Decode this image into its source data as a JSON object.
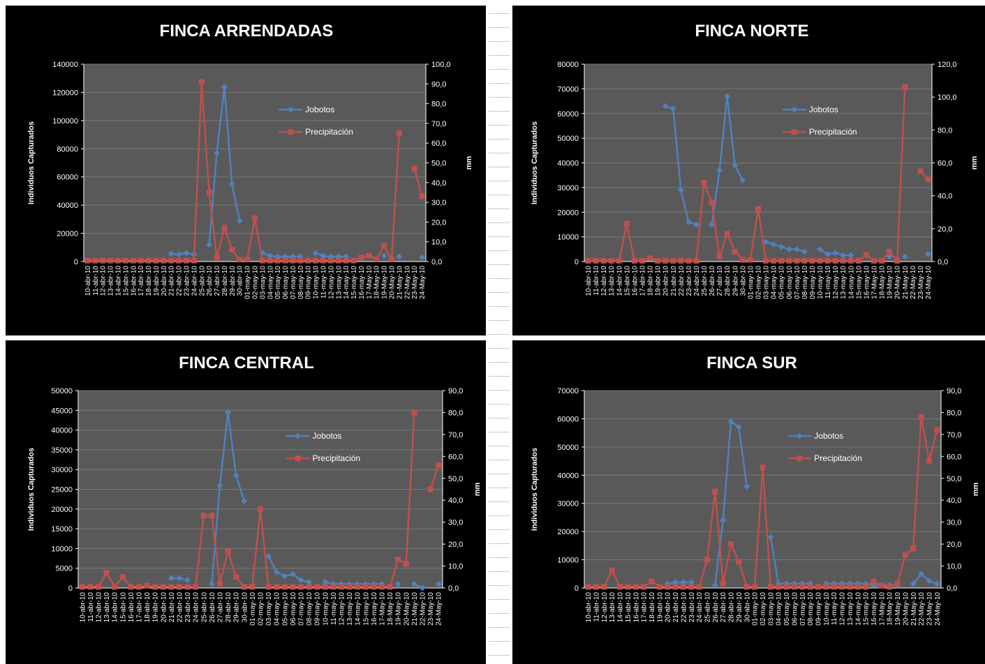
{
  "chart_data": [
    {
      "type": "line",
      "title": "FINCA ARRENDADAS",
      "ylabel": "Individuos Capturados",
      "y2label": "mm",
      "ylim": [
        0,
        140000
      ],
      "yticks": [
        "0",
        "20000",
        "40000",
        "60000",
        "80000",
        "100000",
        "120000",
        "140000"
      ],
      "y2lim": [
        0,
        100
      ],
      "y2ticks": [
        "0,0",
        "10,0",
        "20,0",
        "30,0",
        "40,0",
        "50,0",
        "60,0",
        "70,0",
        "80,0",
        "90,0",
        "100,0"
      ],
      "x": [
        "10-abr-10",
        "11-abr-10",
        "12-abr-10",
        "13-abr-10",
        "14-abr-10",
        "15-abr-10",
        "16-abr-10",
        "17-abr-10",
        "18-abr-10",
        "19-abr-10",
        "20-abr-10",
        "21-abr-10",
        "22-abr-10",
        "23-abr-10",
        "24-abr-10",
        "25-abr-10",
        "26-abr-10",
        "27-abr-10",
        "28-abr-10",
        "29-abr-10",
        "30-abr-10",
        "01-may-10",
        "02-may-10",
        "03-may-10",
        "04-may-10",
        "05-may-10",
        "06-may-10",
        "07-may-10",
        "08-may-10",
        "09-may-10",
        "10-may-10",
        "11-may-10",
        "12-may-10",
        "13-may-10",
        "14-may-10",
        "15-may-10",
        "16-may-10",
        "17-May-10",
        "18-May-10",
        "19-May-10",
        "20-May-10",
        "21-May-10",
        "22-May-10",
        "23-May-10",
        "24-May-10"
      ],
      "legend_position": "upper-center",
      "series": [
        {
          "name": "Jobotos",
          "color": "#4f81bd",
          "axis": "left",
          "values": [
            null,
            null,
            null,
            null,
            null,
            null,
            null,
            null,
            null,
            null,
            null,
            5500,
            5000,
            6000,
            5000,
            null,
            12000,
            77000,
            124000,
            55000,
            29000,
            null,
            null,
            6000,
            4000,
            3500,
            3500,
            3500,
            3500,
            null,
            6000,
            4000,
            3500,
            3500,
            3500,
            null,
            null,
            null,
            null,
            4000,
            null,
            3500,
            null,
            null,
            3000
          ]
        },
        {
          "name": "Precipitación",
          "color": "#c0504d",
          "axis": "right",
          "values": [
            0.5,
            0.5,
            0.5,
            0.5,
            0.5,
            0.5,
            0.5,
            0.5,
            0.5,
            0.5,
            0.5,
            0.5,
            0.5,
            0.5,
            0.5,
            91,
            35,
            2,
            17,
            6,
            1,
            1,
            22,
            0.5,
            0.5,
            0.5,
            0.5,
            0.5,
            0.5,
            0.5,
            0.5,
            0.5,
            0.5,
            0.5,
            0.5,
            0.5,
            2,
            3,
            1,
            8,
            1,
            65,
            null,
            47,
            33
          ]
        }
      ]
    },
    {
      "type": "line",
      "title": "FINCA NORTE",
      "ylabel": "Individuos Capturados",
      "y2label": "mm",
      "ylim": [
        0,
        80000
      ],
      "yticks": [
        "0",
        "10000",
        "20000",
        "30000",
        "40000",
        "50000",
        "60000",
        "70000",
        "80000"
      ],
      "y2lim": [
        0,
        120
      ],
      "y2ticks": [
        "0,0",
        "20,0",
        "40,0",
        "60,0",
        "80,0",
        "100,0",
        "120,0"
      ],
      "x": [
        "10-abr-10",
        "11-abr-10",
        "12-abr-10",
        "13-abr-10",
        "14-abr-10",
        "15-abr-10",
        "16-abr-10",
        "17-abr-10",
        "18-abr-10",
        "19-abr-10",
        "20-abr-10",
        "21-abr-10",
        "22-abr-10",
        "23-abr-10",
        "24-abr-10",
        "25-abr-10",
        "26-abr-10",
        "27-abr-10",
        "28-abr-10",
        "29-abr-10",
        "30-abr-10",
        "01-may-10",
        "02-may-10",
        "03-may-10",
        "04-may-10",
        "05-may-10",
        "06-may-10",
        "07-may-10",
        "08-may-10",
        "09-may-10",
        "10-may-10",
        "11-may-10",
        "12-may-10",
        "13-may-10",
        "14-may-10",
        "15-may-10",
        "16-may-10",
        "17-May-10",
        "18-May-10",
        "19-May-10",
        "20-May-10",
        "21-May-10",
        "22-May-10",
        "23-May-10",
        "24-May-10"
      ],
      "legend_position": "upper-center",
      "series": [
        {
          "name": "Jobotos",
          "color": "#4f81bd",
          "axis": "left",
          "values": [
            null,
            null,
            null,
            null,
            null,
            null,
            null,
            null,
            null,
            null,
            63000,
            62000,
            29000,
            16000,
            15000,
            null,
            15000,
            37000,
            67000,
            39000,
            33000,
            null,
            null,
            8000,
            7000,
            6000,
            5000,
            5000,
            4000,
            null,
            5000,
            3000,
            3500,
            2500,
            2500,
            null,
            null,
            null,
            null,
            2000,
            null,
            2000,
            null,
            null,
            3000
          ]
        },
        {
          "name": "Precipitación",
          "color": "#c0504d",
          "axis": "right",
          "values": [
            0.5,
            0.5,
            0.5,
            0.5,
            0.5,
            23,
            0.5,
            0.5,
            2,
            0.5,
            0.5,
            0.5,
            0.5,
            0.5,
            0.5,
            48,
            36,
            3,
            17,
            6,
            1,
            1,
            32,
            0.5,
            0.5,
            0.5,
            0.5,
            0.5,
            0.5,
            0.5,
            0.5,
            0.5,
            0.5,
            0.5,
            0.5,
            0.5,
            4,
            0.5,
            0.5,
            6,
            0.5,
            106,
            null,
            55,
            50
          ]
        }
      ]
    },
    {
      "type": "line",
      "title": "FINCA CENTRAL",
      "ylabel": "Individuos Capturados",
      "y2label": "mm",
      "ylim": [
        0,
        50000
      ],
      "yticks": [
        "0",
        "5000",
        "10000",
        "15000",
        "20000",
        "25000",
        "30000",
        "35000",
        "40000",
        "45000",
        "50000"
      ],
      "y2lim": [
        0,
        90
      ],
      "y2ticks": [
        "0,0",
        "10,0",
        "20,0",
        "30,0",
        "40,0",
        "50,0",
        "60,0",
        "70,0",
        "80,0",
        "90,0"
      ],
      "x": [
        "10-abr-10",
        "11-abr-10",
        "12-abr-10",
        "13-abr-10",
        "14-abr-10",
        "15-abr-10",
        "16-abr-10",
        "17-abr-10",
        "18-abr-10",
        "19-abr-10",
        "20-abr-10",
        "21-abr-10",
        "22-abr-10",
        "23-abr-10",
        "24-abr-10",
        "25-abr-10",
        "26-abr-10",
        "27-abr-10",
        "28-abr-10",
        "29-abr-10",
        "30-abr-10",
        "01-may-10",
        "02-may-10",
        "03-may-10",
        "04-may-10",
        "05-may-10",
        "06-may-10",
        "07-may-10",
        "08-may-10",
        "09-may-10",
        "10-may-10",
        "11-may-10",
        "12-may-10",
        "13-may-10",
        "14-may-10",
        "15-may-10",
        "16-may-10",
        "17-May-10",
        "18-May-10",
        "19-May-10",
        "20-May-10",
        "21-May-10",
        "22-May-10",
        "23-May-10",
        "24-May-10"
      ],
      "legend_position": "upper-center",
      "series": [
        {
          "name": "Jobotos",
          "color": "#4f81bd",
          "axis": "left",
          "values": [
            null,
            null,
            null,
            null,
            null,
            null,
            null,
            null,
            null,
            null,
            null,
            2500,
            2500,
            2000,
            null,
            null,
            1000,
            26000,
            44500,
            28500,
            22000,
            null,
            null,
            8000,
            4000,
            3000,
            3500,
            2000,
            1500,
            null,
            1500,
            1000,
            1000,
            1000,
            1000,
            1000,
            1000,
            1000,
            null,
            1000,
            null,
            1000,
            0,
            null,
            1000
          ]
        },
        {
          "name": "Precipitación",
          "color": "#c0504d",
          "axis": "right",
          "values": [
            0.5,
            0.5,
            0.5,
            7,
            0.5,
            5,
            0.5,
            0.5,
            1,
            0.5,
            0.5,
            0.5,
            0.5,
            0.5,
            0.5,
            33,
            33,
            2,
            17,
            5,
            0.5,
            0.5,
            36,
            0.5,
            0.5,
            0.5,
            0.5,
            0.5,
            0.5,
            0.5,
            0.5,
            0.5,
            0.5,
            0.5,
            0.5,
            0.5,
            0.5,
            0.5,
            0.5,
            13,
            11,
            80,
            null,
            45,
            56
          ]
        }
      ]
    },
    {
      "type": "line",
      "title": "FINCA SUR",
      "ylabel": "Individuos Capturados",
      "y2label": "mm",
      "ylim": [
        0,
        70000
      ],
      "yticks": [
        "0",
        "10000",
        "20000",
        "30000",
        "40000",
        "50000",
        "60000",
        "70000"
      ],
      "y2lim": [
        0,
        90
      ],
      "y2ticks": [
        "0,0",
        "10,0",
        "20,0",
        "30,0",
        "40,0",
        "50,0",
        "60,0",
        "70,0",
        "80,0",
        "90,0"
      ],
      "x": [
        "10-abr-10",
        "11-abr-10",
        "12-abr-10",
        "13-abr-10",
        "14-abr-10",
        "15-abr-10",
        "16-abr-10",
        "17-abr-10",
        "18-abr-10",
        "19-abr-10",
        "20-abr-10",
        "21-abr-10",
        "22-abr-10",
        "23-abr-10",
        "24-abr-10",
        "25-abr-10",
        "26-abr-10",
        "27-abr-10",
        "28-abr-10",
        "29-abr-10",
        "30-abr-10",
        "01-may-10",
        "02-may-10",
        "03-may-10",
        "04-may-10",
        "05-may-10",
        "06-may-10",
        "07-may-10",
        "08-may-10",
        "09-may-10",
        "10-may-10",
        "11-may-10",
        "12-may-10",
        "13-may-10",
        "14-may-10",
        "15-may-10",
        "16-may-10",
        "17-May-10",
        "18-May-10",
        "19-May-10",
        "20-May-10",
        "21-May-10",
        "22-May-10",
        "23-May-10",
        "24-May-10"
      ],
      "legend_position": "upper-center",
      "series": [
        {
          "name": "Jobotos",
          "color": "#4f81bd",
          "axis": "left",
          "values": [
            null,
            null,
            null,
            null,
            null,
            null,
            null,
            null,
            null,
            null,
            1500,
            2000,
            2000,
            2000,
            null,
            null,
            1000,
            24000,
            59000,
            57000,
            36000,
            null,
            null,
            18000,
            1500,
            1500,
            1500,
            1500,
            1500,
            null,
            1500,
            1500,
            1500,
            1500,
            1500,
            1500,
            1000,
            1000,
            1000,
            1000,
            null,
            1500,
            5000,
            2500,
            1500
          ]
        },
        {
          "name": "Precipitación",
          "color": "#c0504d",
          "axis": "right",
          "values": [
            0.5,
            0.5,
            0.5,
            8,
            0.5,
            0.5,
            0.5,
            0.5,
            3,
            0.5,
            0.5,
            0.5,
            0.5,
            0.5,
            0.5,
            13,
            44,
            2,
            20,
            12,
            0.5,
            0.5,
            55,
            0.5,
            0.5,
            0.5,
            0.5,
            0.5,
            0.5,
            0.5,
            0.5,
            0.5,
            0.5,
            0.5,
            0.5,
            0.5,
            3,
            1,
            0.5,
            2,
            15,
            18,
            78,
            58,
            72
          ]
        }
      ]
    }
  ]
}
